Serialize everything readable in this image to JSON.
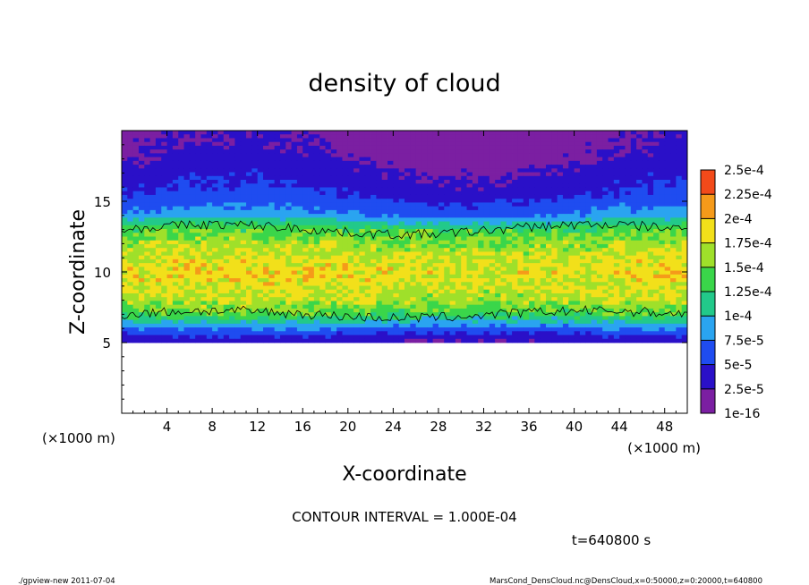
{
  "chart_data": {
    "type": "heatmap",
    "title": "density of cloud",
    "xlabel": "X-coordinate",
    "ylabel": "Z-coordinate",
    "x_unit_left": "(×1000 m)",
    "x_unit_right": "(×1000 m)",
    "xlim": [
      0,
      50
    ],
    "ylim": [
      0,
      20
    ],
    "x_ticks": [
      "4",
      "8",
      "12",
      "16",
      "20",
      "24",
      "28",
      "32",
      "36",
      "40",
      "44",
      "48"
    ],
    "x_tick_values": [
      4,
      8,
      12,
      16,
      20,
      24,
      28,
      32,
      36,
      40,
      44,
      48
    ],
    "y_ticks": [
      "5",
      "10",
      "15"
    ],
    "y_tick_values": [
      5,
      10,
      15
    ],
    "colorbar": {
      "labels": [
        "1e-16",
        "2.5e-5",
        "5e-5",
        "7.5e-5",
        "1e-4",
        "1.25e-4",
        "1.5e-4",
        "1.75e-4",
        "2e-4",
        "2.25e-4",
        "2.5e-4"
      ],
      "colors": [
        "#7b1fa2",
        "#2a10c8",
        "#1f4cf0",
        "#2aa4f0",
        "#22c98a",
        "#3ad64a",
        "#9fe02a",
        "#f2e01a",
        "#f59a1a",
        "#f24a1a",
        "#f77fa0"
      ]
    },
    "contour_interval": "CONTOUR INTERVAL = 1.000E-04",
    "cloud_layer": {
      "bottom_z": 5,
      "top_z": 19,
      "core_z_range": [
        7,
        13
      ]
    },
    "field_profile": [
      {
        "z": 20,
        "value": 0.1
      },
      {
        "z": 18.5,
        "value": 0.3
      },
      {
        "z": 17,
        "value": 0.8
      },
      {
        "z": 15.5,
        "value": 1.4
      },
      {
        "z": 14,
        "value": 2.6
      },
      {
        "z": 13,
        "value": 5.0
      },
      {
        "z": 12,
        "value": 6.0
      },
      {
        "z": 10,
        "value": 7.0
      },
      {
        "z": 8,
        "value": 6.2
      },
      {
        "z": 7,
        "value": 5.0
      },
      {
        "z": 6.3,
        "value": 3.0
      },
      {
        "z": 5.6,
        "value": 1.5
      },
      {
        "z": 5,
        "value": 0.6
      }
    ]
  },
  "annotations": {
    "time": "t=640800 s",
    "footer_left": "./gpview-new   2011-07-04",
    "footer_right": "MarsCond_DensCloud.nc@DensCloud,x=0:50000,z=0:20000,t=640800"
  },
  "colors": {
    "frame": "#000000",
    "background": "#ffffff"
  }
}
